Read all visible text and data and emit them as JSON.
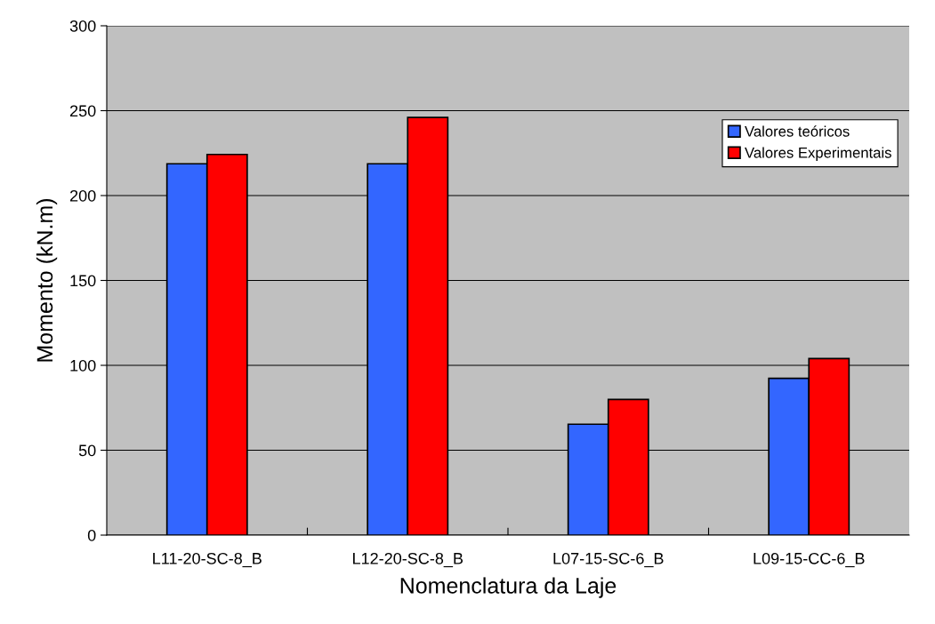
{
  "chart_data": {
    "type": "bar",
    "xlabel": "Nomenclatura da Laje",
    "ylabel": "Momento (kN.m)",
    "categories": [
      "L11-20-SC-8_B",
      "L12-20-SC-8_B",
      "L07-15-SC-6_B",
      "L09-15-CC-6_B"
    ],
    "series": [
      {
        "name": "Valores teóricos",
        "color": "#3366ff",
        "values": [
          218.7,
          218.7,
          65.3,
          92.3
        ]
      },
      {
        "name": "Valores Experimentais",
        "color": "#ff0000",
        "values": [
          224.2,
          246,
          79.9,
          104
        ]
      }
    ],
    "ylim": [
      0,
      300
    ],
    "yticks": [
      0,
      50,
      100,
      150,
      200,
      250,
      300
    ],
    "grid": "y",
    "legend": "top right"
  }
}
